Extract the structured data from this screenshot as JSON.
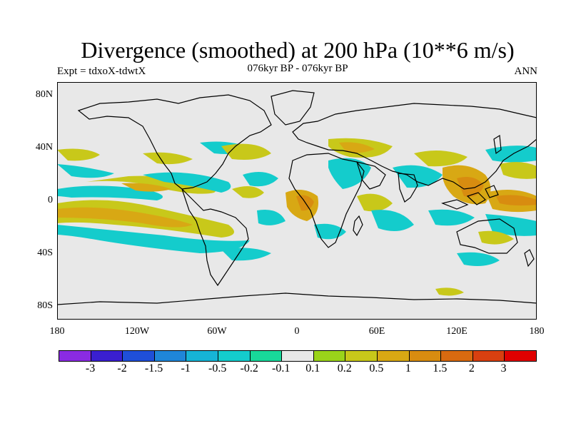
{
  "title": "Divergence (smoothed) at 200 hPa (10**6 m/s)",
  "experiment": "Expt = tdxoX-tdwtX",
  "period": "076kyr BP - 076kyr BP",
  "season": "ANN",
  "y_axis": {
    "labels": [
      "80N",
      "40N",
      "0",
      "40S",
      "80S"
    ],
    "values": [
      80,
      40,
      0,
      -40,
      -80
    ]
  },
  "x_axis": {
    "labels": [
      "180",
      "120W",
      "60W",
      "0",
      "60E",
      "120E",
      "180"
    ],
    "values": [
      -180,
      -120,
      -60,
      0,
      60,
      120,
      180
    ]
  },
  "colorbar": {
    "colors": [
      "#8a2be2",
      "#3a1fd0",
      "#1f4fd8",
      "#1f86d8",
      "#16b4d6",
      "#14cccc",
      "#18d89a",
      "#e8e8e8",
      "#9ad41a",
      "#c8c81a",
      "#d8a814",
      "#d88c10",
      "#d86a10",
      "#d84010",
      "#e00000"
    ],
    "labels": [
      "-3",
      "-2",
      "-1.5",
      "-1",
      "-0.5",
      "-0.2",
      "-0.1",
      "0.1",
      "0.2",
      "0.5",
      "1",
      "1.5",
      "2",
      "3"
    ]
  },
  "colors": {
    "neutral": "#e8e8e8",
    "neg1": "#18d89a",
    "neg2": "#14cccc",
    "neg3": "#16b4d6",
    "neg4": "#1f86d8",
    "pos1": "#9ad41a",
    "pos2": "#c8c81a",
    "pos3": "#d8a814",
    "pos4": "#d88c10",
    "pos5": "#d86a10"
  }
}
